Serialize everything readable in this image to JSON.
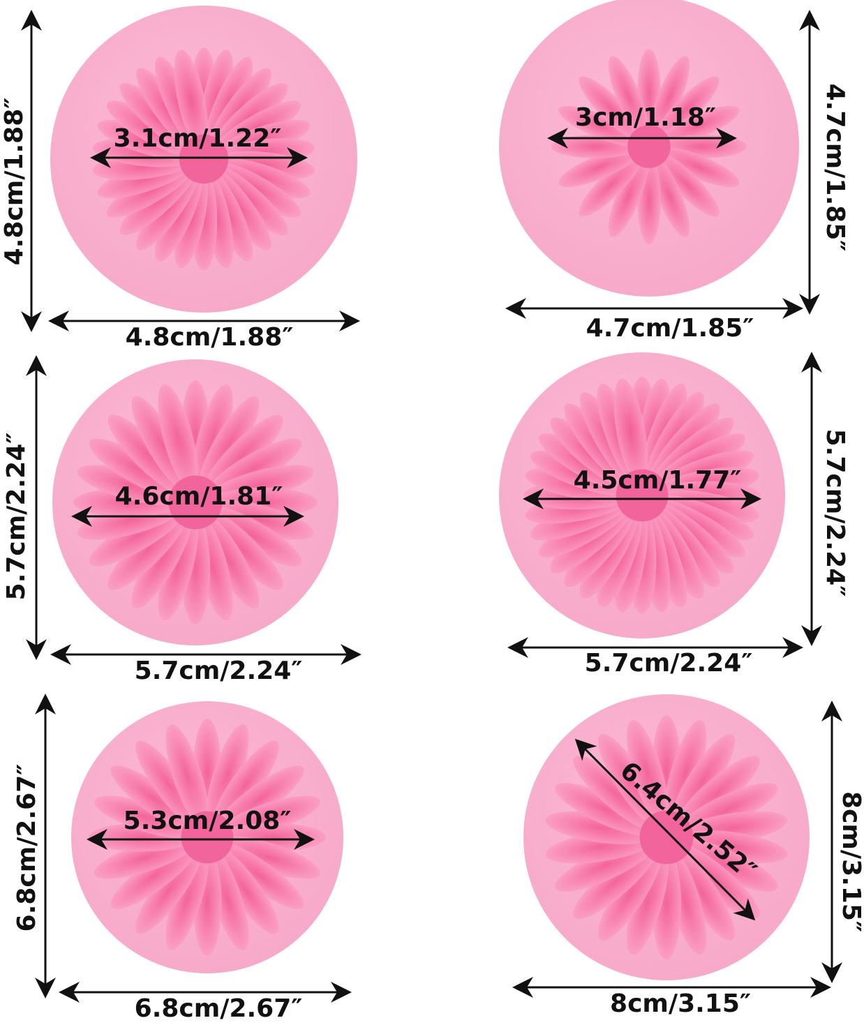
{
  "molds": [
    {
      "inner": "3.1cm/1.22″",
      "height": "4.8cm/1.88″",
      "width": "4.8cm/1.88″"
    },
    {
      "inner": "3cm/1.18″",
      "height": "4.7cm/1.85″",
      "width": "4.7cm/1.85″"
    },
    {
      "inner": "4.6cm/1.81″",
      "height": "5.7cm/2.24″",
      "width": "5.7cm/2.24″"
    },
    {
      "inner": "4.5cm/1.77″",
      "height": "5.7cm/2.24″",
      "width": "5.7cm/2.24″"
    },
    {
      "inner": "5.3cm/2.08″",
      "height": "6.8cm/2.67″",
      "width": "6.8cm/2.67″"
    },
    {
      "inner": "6.4cm/2.52″",
      "height": "8cm/3.15″",
      "width": "8cm/3.15″"
    }
  ]
}
